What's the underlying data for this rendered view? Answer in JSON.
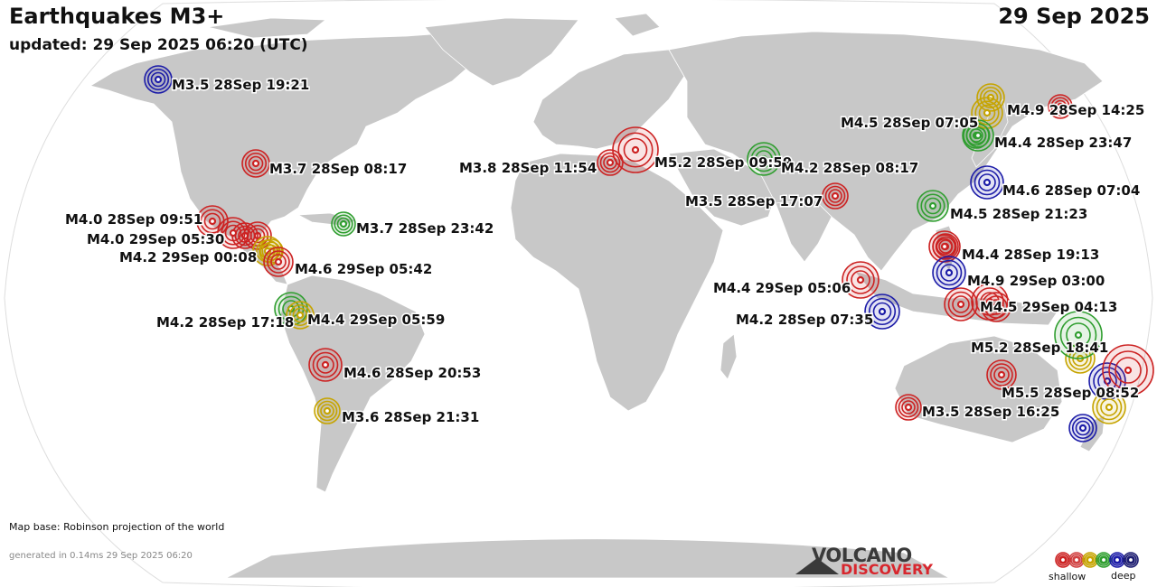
{
  "header": {
    "title": "Earthquakes M3+",
    "updated": "updated: 29 Sep 2025 06:20 (UTC)",
    "date": "29 Sep 2025"
  },
  "footer": {
    "map_base": "Map base: Robinson projection of the world",
    "generated": "generated in 0.14ms 29 Sep 2025 06:20",
    "logo_top": "VOLCANO",
    "logo_bottom": "DISCOVERY",
    "legend_shallow": "shallow",
    "legend_deep": "deep"
  },
  "colors": {
    "ocean": "#ffffff",
    "land": "#c8c8c8",
    "depth_scale": [
      "#cc2222",
      "#d04040",
      "#c6a400",
      "#2f9e2f",
      "#1c1ca8",
      "#1c1c70"
    ]
  },
  "quakes": [
    {
      "label": "M3.5 28Sep 19:21",
      "color": "#1c1ca8"
    },
    {
      "label": "M3.7 28Sep 08:17",
      "color": "#cc2222"
    },
    {
      "label": "M4.0 28Sep 09:51",
      "color": "#cc2222"
    },
    {
      "label": "M4.0 29Sep 05:30",
      "color": "#cc2222"
    },
    {
      "label": "M4.2 29Sep 00:08",
      "color": "#c6a400"
    },
    {
      "label": "M4.6 29Sep 05:42",
      "color": "#cc2222"
    },
    {
      "label": "M3.7 28Sep 23:42",
      "color": "#2f9e2f"
    },
    {
      "label": "M4.2 28Sep 17:18",
      "color": "#2f9e2f"
    },
    {
      "label": "M4.4 29Sep 05:59",
      "color": "#c6a400"
    },
    {
      "label": "M4.6 28Sep 20:53",
      "color": "#cc2222"
    },
    {
      "label": "M3.6 28Sep 21:31",
      "color": "#c6a400"
    },
    {
      "label": "M3.8 28Sep 11:54",
      "color": "#cc2222"
    },
    {
      "label": "M5.2 28Sep 09:59",
      "color": "#cc2222"
    },
    {
      "label": "M4.2 28Sep 08:17",
      "color": "#2f9e2f"
    },
    {
      "label": "M3.5 28Sep 17:07",
      "color": "#cc2222"
    },
    {
      "label": "M4.9 28Sep 14:25",
      "color": "#cc2222"
    },
    {
      "label": "M4.5 28Sep 07:05",
      "color": "#c6a400"
    },
    {
      "label": "M4.4 28Sep 23:47",
      "color": "#2f9e2f"
    },
    {
      "label": "M4.6 28Sep 07:04",
      "color": "#1c1ca8"
    },
    {
      "label": "M4.5 28Sep 21:23",
      "color": "#2f9e2f"
    },
    {
      "label": "M4.4 28Sep 19:13",
      "color": "#cc2222"
    },
    {
      "label": "M4.9 29Sep 03:00",
      "color": "#1c1ca8"
    },
    {
      "label": "M4.4 29Sep 05:06",
      "color": "#cc2222"
    },
    {
      "label": "M4.2 28Sep 07:35",
      "color": "#1c1ca8"
    },
    {
      "label": "M4.5 29Sep 04:13",
      "color": "#cc2222"
    },
    {
      "label": "M5.2 28Sep 18:41",
      "color": "#2f9e2f"
    },
    {
      "label": "M5.5 28Sep 08:52",
      "color": "#cc2222"
    },
    {
      "label": "M3.5 28Sep 16:25",
      "color": "#cc2222"
    }
  ],
  "extra_markers": [
    {
      "color": "#cc2222"
    },
    {
      "color": "#cc2222"
    },
    {
      "color": "#cc2222"
    },
    {
      "color": "#c6a400"
    },
    {
      "color": "#c6a400"
    },
    {
      "color": "#2f9e2f"
    },
    {
      "color": "#cc2222"
    },
    {
      "color": "#cc2222"
    },
    {
      "color": "#c6a400"
    },
    {
      "color": "#1c1ca8"
    },
    {
      "color": "#c6a400"
    },
    {
      "color": "#1c1ca8"
    },
    {
      "color": "#cc2222"
    }
  ]
}
